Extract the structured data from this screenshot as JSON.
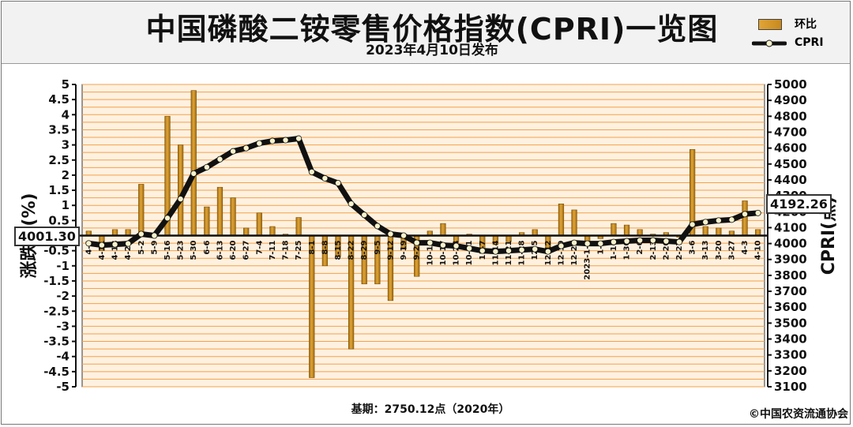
{
  "title": "中国磷酸二铵零售价格指数(CPRI)一览图",
  "subtitle": "2023年4月10日发布",
  "legend": {
    "bar_label": "环比",
    "line_label": "CPRI"
  },
  "footer": {
    "base_note": "基期：2750.12点（2020年）",
    "copyright": "©中国农资流通协会"
  },
  "callouts": {
    "start_value": "4001.30",
    "end_value": "4192.26"
  },
  "colors": {
    "bar": "#e0a437",
    "bar_dark": "#a06c10",
    "grid": "#f2a14a",
    "plot_bg": "#fff1e0",
    "line": "#111111",
    "marker": "#f6f2cc"
  },
  "chart_data": {
    "type": "bar",
    "categories": [
      "4-4",
      "4-11",
      "4-18",
      "4-25",
      "5-2",
      "5-9",
      "5-16",
      "5-23",
      "5-30",
      "6-6",
      "6-13",
      "6-20",
      "6-27",
      "7-4",
      "7-11",
      "7-18",
      "7-25",
      "8-1",
      "8-8",
      "8-15",
      "8-22",
      "8-29",
      "9-5",
      "9-12",
      "9-19",
      "9-26",
      "10-10",
      "10-17",
      "10-24",
      "10-31",
      "11-7",
      "11-14",
      "11-21",
      "11-28",
      "12-5",
      "12-12",
      "12-19",
      "12-26",
      "2023-1-2",
      "1-9",
      "1-16",
      "1-30",
      "2-6",
      "2-13",
      "2-20",
      "2-27",
      "3-6",
      "3-13",
      "3-20",
      "3-27",
      "4-3",
      "4-10"
    ],
    "series": [
      {
        "name": "环比",
        "axis": "left",
        "values": [
          0.15,
          -0.5,
          0.2,
          0.2,
          1.7,
          0.05,
          3.95,
          3.0,
          4.8,
          0.95,
          1.6,
          1.25,
          0.25,
          0.75,
          0.3,
          0.05,
          0.6,
          -4.7,
          -1.0,
          -0.7,
          -3.75,
          -1.6,
          -1.6,
          -2.15,
          -0.45,
          -1.35,
          0.15,
          0.4,
          -0.2,
          0.05,
          -0.45,
          -0.3,
          -0.2,
          0.1,
          0.2,
          -0.6,
          1.05,
          0.85,
          -0.3,
          -0.1,
          0.4,
          0.35,
          0.2,
          0.05,
          0.1,
          -0.05,
          2.85,
          0.3,
          0.25,
          0.15,
          1.15,
          0.2
        ]
      },
      {
        "name": "CPRI",
        "axis": "right",
        "values": [
          4001.3,
          3990,
          3995,
          4000,
          4060,
          4050,
          4160,
          4280,
          4440,
          4480,
          4530,
          4580,
          4600,
          4630,
          4645,
          4650,
          4660,
          4450,
          4410,
          4380,
          4250,
          4180,
          4110,
          4060,
          4050,
          4005,
          4005,
          3990,
          3985,
          3970,
          3955,
          3950,
          3955,
          3960,
          3965,
          3950,
          3985,
          4005,
          4000,
          4000,
          4010,
          4015,
          4020,
          4020,
          4015,
          4010,
          4120,
          4135,
          4145,
          4150,
          4185,
          4192.26
        ]
      }
    ],
    "ylim_left": [
      -5,
      5
    ],
    "ylim_right": [
      3100,
      5000
    ],
    "yticks_left": [
      "5",
      "4.5",
      "4",
      "3.5",
      "3",
      "2.5",
      "2",
      "1.5",
      "1",
      "0.5",
      "0",
      "-0.5",
      "-1",
      "-1.5",
      "-2",
      "-2.5",
      "-3",
      "-3.5",
      "-4",
      "-4.5",
      "-5"
    ],
    "yticks_right": [
      "5000",
      "4900",
      "4800",
      "4700",
      "4600",
      "4500",
      "4400",
      "4300",
      "4200",
      "4100",
      "4000",
      "3900",
      "3800",
      "3700",
      "3600",
      "3500",
      "3400",
      "3300",
      "3200",
      "3100"
    ],
    "ylabel_left": "涨跌幅(%)",
    "ylabel_right": "CPRI(点)",
    "grid": true,
    "legend_position": "top-right"
  }
}
